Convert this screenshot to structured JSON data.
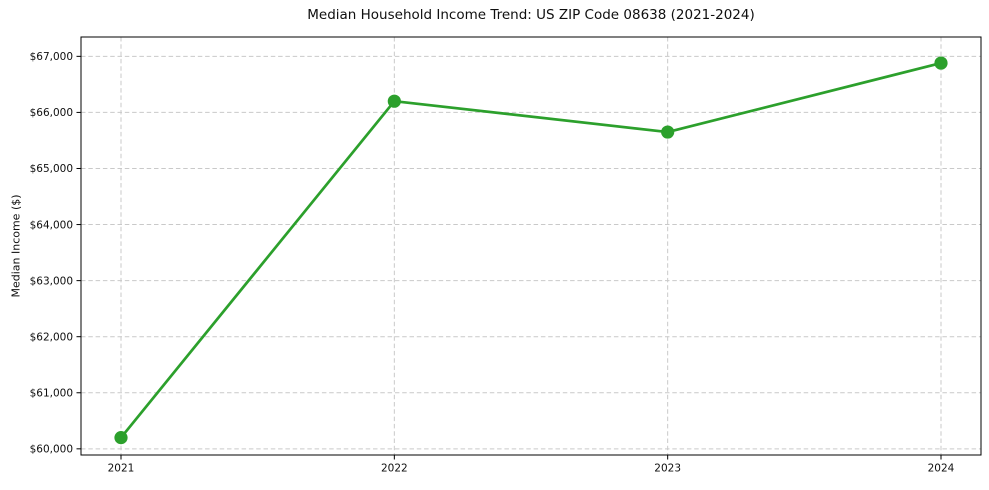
{
  "chart_data": {
    "type": "line",
    "title": "Median Household Income Trend: US ZIP Code 08638 (2021-2024)",
    "xlabel": "",
    "ylabel": "Median Income ($)",
    "categories": [
      "2021",
      "2022",
      "2023",
      "2024"
    ],
    "series": [
      {
        "name": "Median Income",
        "values": [
          60200,
          66200,
          65650,
          66880
        ],
        "color": "#2ca02c"
      }
    ],
    "ylim": [
      59890,
      67345
    ],
    "yticks": [
      60000,
      61000,
      62000,
      63000,
      64000,
      65000,
      66000,
      67000
    ],
    "ytick_labels": [
      "$60,000",
      "$61,000",
      "$62,000",
      "$63,000",
      "$64,000",
      "$65,000",
      "$66,000",
      "$67,000"
    ],
    "grid": true,
    "grid_style": "dashed",
    "grid_color": "#c9c9c9",
    "legend_position": "none",
    "marker": "circle",
    "marker_radius": 6.6,
    "line_width": 2.7,
    "background": "#ffffff",
    "text_color": "#0f0f0f"
  }
}
